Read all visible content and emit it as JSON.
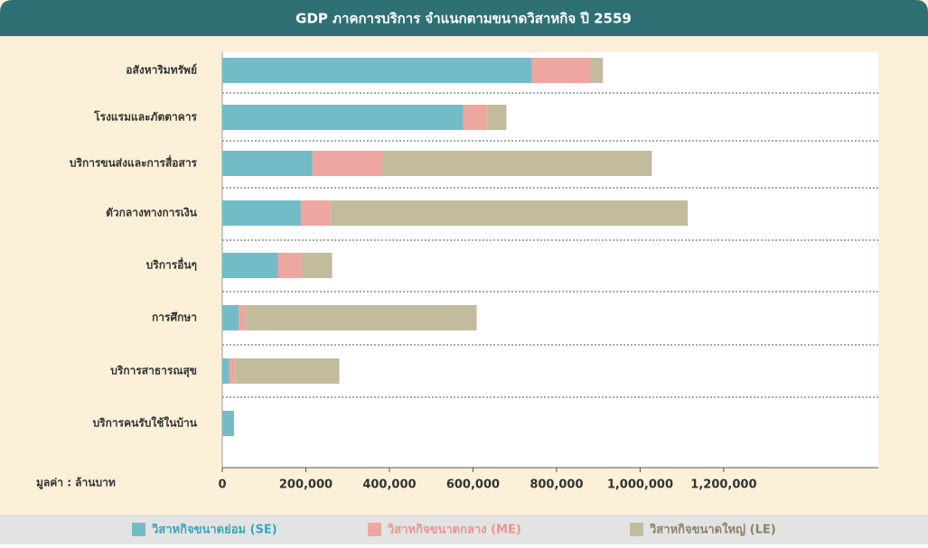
{
  "chart_data": {
    "type": "stacked_barh",
    "title": "GDP ภาคการบริการ จำแนกตามขนาดวิสาหกิจ ปี 2559",
    "x_label": "มูลค่า : ล้านบาท",
    "categories": [
      "อสังหาริมทรัพย์",
      "โรงแรมและภัตตาคาร",
      "บริการขนส่งและการสื่อสาร",
      "ตัวกลางทางการเงิน",
      "บริการอื่นๆ",
      "การศึกษา",
      "บริการสาธารณสุข",
      "บริการคนรับใช้ในบ้าน"
    ],
    "series": [
      {
        "name": "วิสาหกิจขนาดย่อม (SE)",
        "color": "#72bcc8",
        "values": [
          741000,
          577000,
          216000,
          188000,
          134000,
          39000,
          17000,
          28000
        ]
      },
      {
        "name": "วิสาหกิจขนาดกลาง (ME)",
        "color": "#eea7a0",
        "values": [
          140000,
          58000,
          168000,
          71000,
          56000,
          17000,
          15000,
          0
        ]
      },
      {
        "name": "วิสาหกิจขนาดใหญ่ (LE)",
        "color": "#c2bb9d",
        "values": [
          30000,
          45000,
          644000,
          855000,
          73000,
          553000,
          248000,
          0
        ]
      }
    ],
    "xlim": [
      0,
      1570000
    ],
    "xticks": [
      0,
      {
        "value": 200000,
        "label": "200,000"
      },
      {
        "value": 400000,
        "label": "400,000"
      },
      {
        "value": 600000,
        "label": "600,000"
      },
      {
        "value": 800000,
        "label": "800,000"
      },
      {
        "value": 1000000,
        "label": "1,000,000"
      },
      {
        "value": 1200000,
        "label": "1,200,000"
      }
    ],
    "legend": "bottom"
  }
}
